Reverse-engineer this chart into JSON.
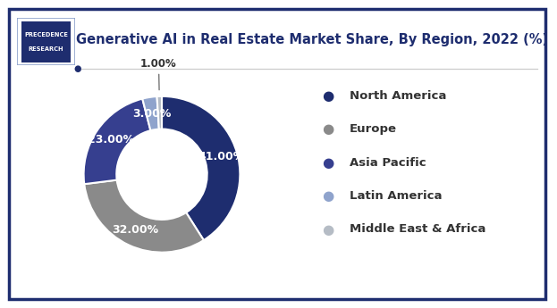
{
  "title": "Generative AI in Real Estate Market Share, By Region, 2022 (%)",
  "labels": [
    "North America",
    "Europe",
    "Asia Pacific",
    "Latin America",
    "Middle East & Africa"
  ],
  "values": [
    41.0,
    32.0,
    23.0,
    3.0,
    1.0
  ],
  "colors": [
    "#1e2d6f",
    "#8a8a8a",
    "#363f8f",
    "#8fa3cc",
    "#b5bcc5"
  ],
  "pct_labels": [
    "41.00%",
    "32.00%",
    "23.00%",
    "3.00%",
    "1.00%"
  ],
  "background_color": "#ffffff",
  "border_color": "#1e2d6f",
  "title_color": "#1e2d6f",
  "legend_colors": [
    "#1e2d6f",
    "#8a8a8a",
    "#363f8f",
    "#8fa3cc",
    "#b5bcc5"
  ],
  "donut_width": 0.42,
  "title_fontsize": 10.5,
  "label_fontsize": 9.0,
  "legend_fontsize": 9.5,
  "logo_bg": "#1e2d6f",
  "logo_border": "#8fa3cc"
}
